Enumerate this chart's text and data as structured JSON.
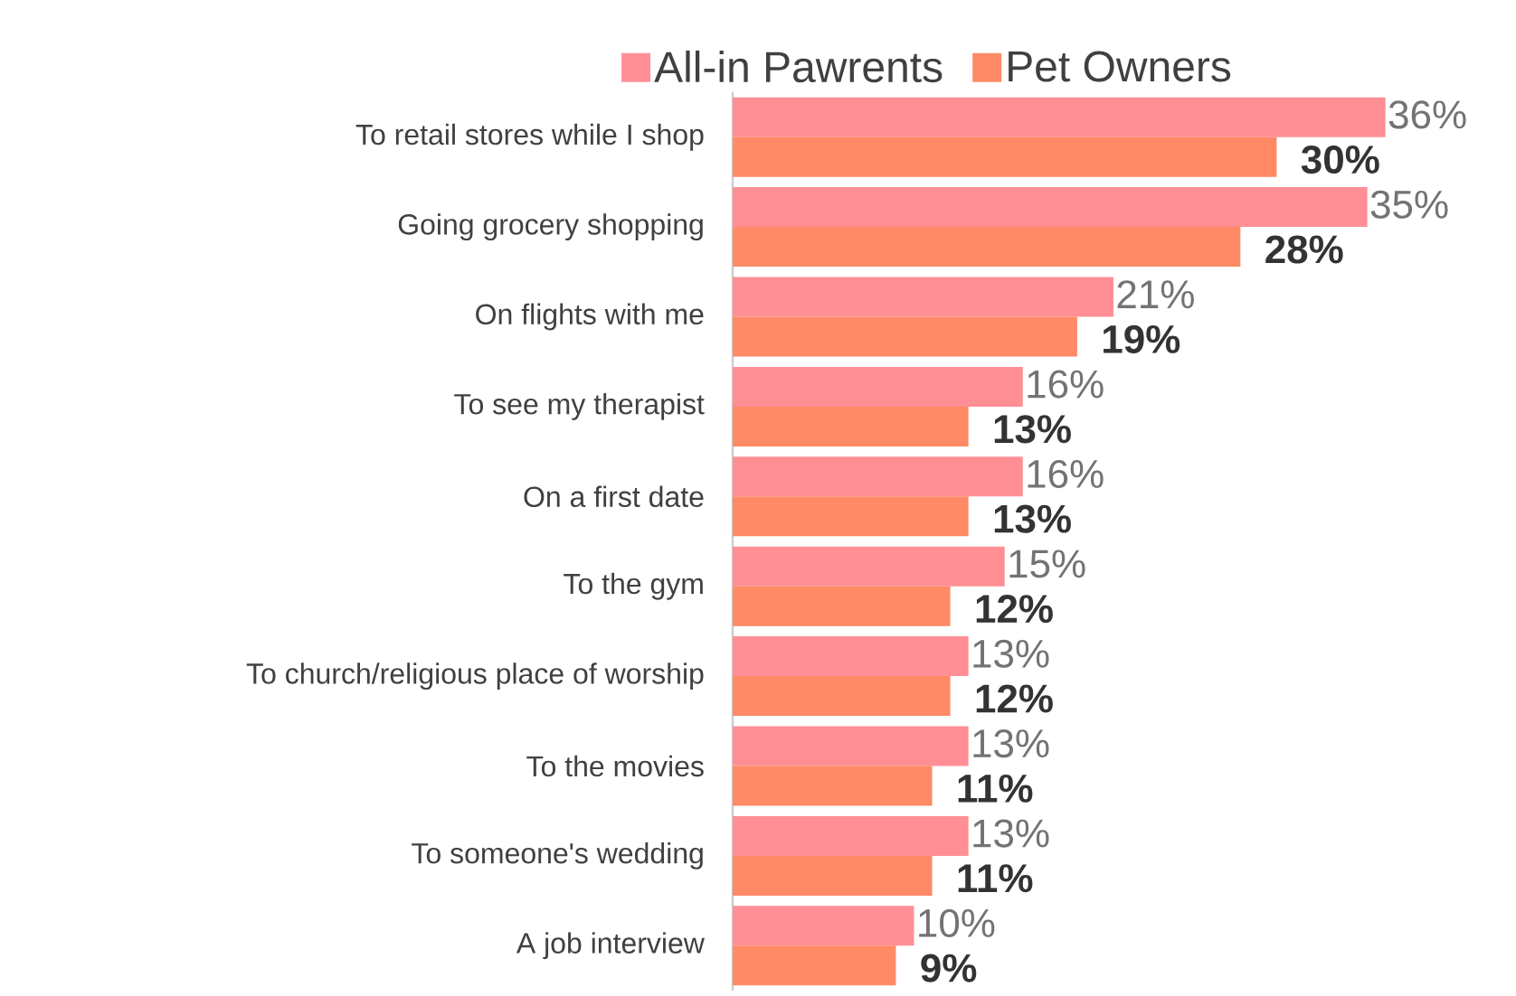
{
  "chart_data": {
    "type": "bar",
    "orientation": "horizontal",
    "categories": [
      "To retail stores while I shop",
      "Going grocery shopping",
      "On flights with me",
      "To see my therapist",
      "On a first date",
      "To the gym",
      "To church/religious place of worship",
      "To the movies",
      "To someone's wedding",
      "A job interview"
    ],
    "series": [
      {
        "name": "All-in Pawrents",
        "color": "#ff8f94",
        "values": [
          36,
          35,
          21,
          16,
          16,
          15,
          13,
          13,
          13,
          10
        ],
        "value_labels": [
          "36%",
          "35%",
          "21%",
          "16%",
          "16%",
          "15%",
          "13%",
          "13%",
          "13%",
          "10%"
        ]
      },
      {
        "name": "Pet Owners",
        "color": "#ff8a65",
        "values": [
          30,
          28,
          19,
          13,
          13,
          12,
          12,
          11,
          11,
          9
        ],
        "value_labels": [
          "30%",
          "28%",
          "19%",
          "13%",
          "13%",
          "12%",
          "12%",
          "11%",
          "11%",
          "9%"
        ]
      }
    ],
    "legend": "top"
  }
}
